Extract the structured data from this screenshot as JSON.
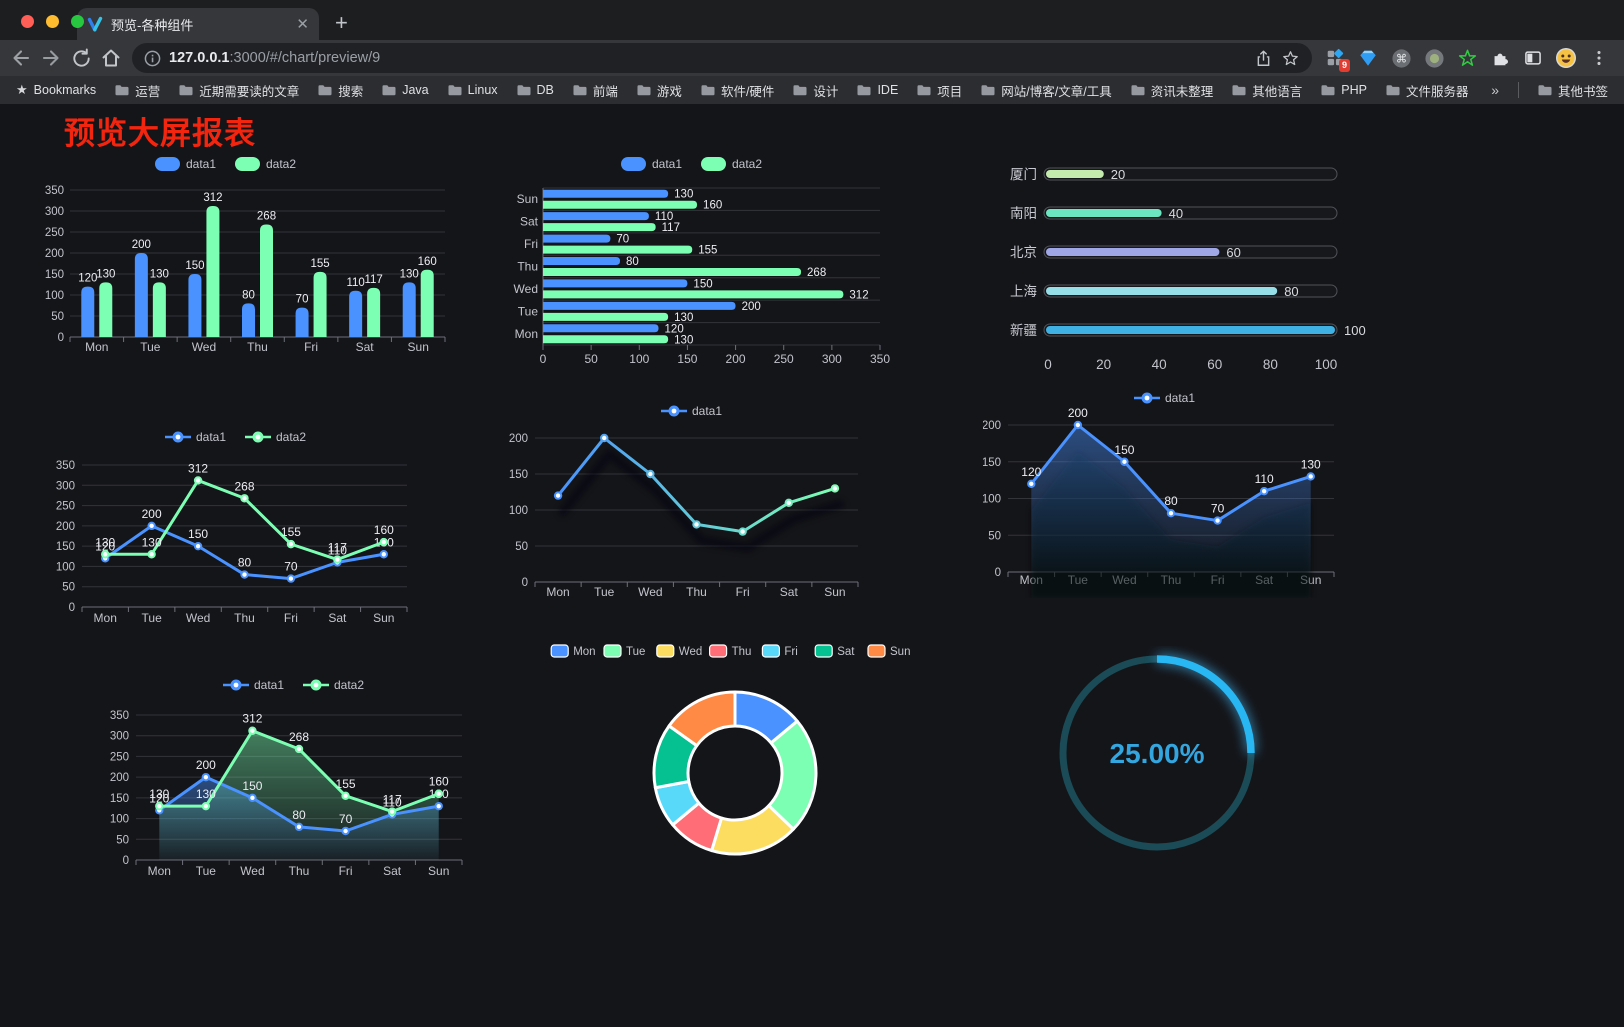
{
  "browser": {
    "tab_title": "预览-各种组件",
    "url_host": "127.0.0.1",
    "url_rest": ":3000/#/chart/preview/9",
    "extension_badge": "9",
    "bookmarks": [
      "Bookmarks",
      "运营",
      "近期需要读的文章",
      "搜索",
      "Java",
      "Linux",
      "DB",
      "前端",
      "游戏",
      "软件/硬件",
      "设计",
      "IDE",
      "项目",
      "网站/博客/文章/工具",
      "资讯未整理",
      "其他语言",
      "PHP",
      "文件服务器"
    ],
    "bookmarks_overflow": "»",
    "other_bookmarks": "其他书签"
  },
  "page": {
    "title": "预览大屏报表",
    "title_color": "#f3250f",
    "background": "#141519"
  },
  "chart_data": [
    {
      "id": "bar-grouped",
      "type": "bar",
      "categories": [
        "Mon",
        "Tue",
        "Wed",
        "Thu",
        "Fri",
        "Sat",
        "Sun"
      ],
      "series": [
        {
          "name": "data1",
          "color": "#4992ff",
          "values": [
            120,
            200,
            150,
            80,
            70,
            110,
            130
          ]
        },
        {
          "name": "data2",
          "color": "#7cffb2",
          "values": [
            130,
            130,
            312,
            268,
            155,
            117,
            160
          ]
        }
      ],
      "ymax": 350,
      "yticks": [
        0,
        50,
        100,
        150,
        200,
        250,
        300,
        350
      ],
      "show_labels": true,
      "legend_position": "top"
    },
    {
      "id": "bar-horizontal",
      "type": "bar-h",
      "categories_top_to_bottom": [
        "Sun",
        "Sat",
        "Fri",
        "Thu",
        "Wed",
        "Tue",
        "Mon"
      ],
      "series": [
        {
          "name": "data1",
          "color": "#4992ff",
          "values": [
            130,
            110,
            70,
            80,
            150,
            200,
            120
          ]
        },
        {
          "name": "data2",
          "color": "#7cffb2",
          "values": [
            160,
            117,
            155,
            268,
            312,
            130,
            130
          ]
        }
      ],
      "xmax": 350,
      "xticks": [
        0,
        50,
        100,
        150,
        200,
        250,
        300,
        350
      ],
      "show_labels": true,
      "legend_position": "top"
    },
    {
      "id": "progress",
      "type": "progress-bars",
      "items": [
        {
          "label": "厦门",
          "value": 20,
          "color": "#c4ebad"
        },
        {
          "label": "南阳",
          "value": 40,
          "color": "#6be6c1"
        },
        {
          "label": "北京",
          "value": 60,
          "color": "#a0a7e6"
        },
        {
          "label": "上海",
          "value": 80,
          "color": "#96dee8"
        },
        {
          "label": "新疆",
          "value": 100,
          "color": "#3fb1e3"
        }
      ],
      "xmax": 100,
      "xticks": [
        0,
        20,
        40,
        60,
        80,
        100
      ]
    },
    {
      "id": "line-basic",
      "type": "line",
      "categories": [
        "Mon",
        "Tue",
        "Wed",
        "Thu",
        "Fri",
        "Sat",
        "Sun"
      ],
      "series": [
        {
          "name": "data1",
          "color": "#4992ff",
          "values": [
            120,
            200,
            150,
            80,
            70,
            110,
            130
          ]
        },
        {
          "name": "data2",
          "color": "#7cffb2",
          "values": [
            130,
            130,
            312,
            268,
            155,
            117,
            160
          ]
        }
      ],
      "ymax": 350,
      "yticks": [
        0,
        50,
        100,
        150,
        200,
        250,
        300,
        350
      ],
      "show_labels": true,
      "legend_position": "top"
    },
    {
      "id": "line-gradient",
      "type": "line",
      "categories": [
        "Mon",
        "Tue",
        "Wed",
        "Thu",
        "Fri",
        "Sat",
        "Sun"
      ],
      "series": [
        {
          "name": "data1",
          "gradient": [
            "#4992ff",
            "#7cffb2"
          ],
          "values": [
            120,
            200,
            150,
            80,
            70,
            110,
            130
          ]
        }
      ],
      "ymax": 200,
      "yticks": [
        0,
        50,
        100,
        150,
        200
      ],
      "show_labels": false,
      "line_shadow": true,
      "legend_position": "top"
    },
    {
      "id": "area-single",
      "type": "line",
      "categories": [
        "Mon",
        "Tue",
        "Wed",
        "Thu",
        "Fri",
        "Sat",
        "Sun"
      ],
      "series": [
        {
          "name": "data1",
          "color": "#4992ff",
          "area": true,
          "values": [
            120,
            200,
            150,
            80,
            70,
            110,
            130
          ]
        }
      ],
      "ymax": 200,
      "yticks": [
        0,
        50,
        100,
        150,
        200
      ],
      "show_labels": true,
      "area_shadow": true,
      "legend_position": "top"
    },
    {
      "id": "area-double",
      "type": "line",
      "categories": [
        "Mon",
        "Tue",
        "Wed",
        "Thu",
        "Fri",
        "Sat",
        "Sun"
      ],
      "series": [
        {
          "name": "data1",
          "color": "#4992ff",
          "area": true,
          "values": [
            120,
            200,
            150,
            80,
            70,
            110,
            130
          ]
        },
        {
          "name": "data2",
          "color": "#7cffb2",
          "area": true,
          "values": [
            130,
            130,
            312,
            268,
            155,
            117,
            160
          ]
        }
      ],
      "ymax": 350,
      "yticks": [
        0,
        50,
        100,
        150,
        200,
        250,
        300,
        350
      ],
      "show_labels": true,
      "legend_position": "top"
    },
    {
      "id": "donut",
      "type": "pie",
      "items": [
        {
          "label": "Mon",
          "value": 120,
          "color": "#4992ff"
        },
        {
          "label": "Tue",
          "value": 200,
          "color": "#7cffb2"
        },
        {
          "label": "Wed",
          "value": 150,
          "color": "#fddd60"
        },
        {
          "label": "Thu",
          "value": 80,
          "color": "#ff6e76"
        },
        {
          "label": "Fri",
          "value": 70,
          "color": "#58d9f9"
        },
        {
          "label": "Sat",
          "value": 110,
          "color": "#05c091"
        },
        {
          "label": "Sun",
          "value": 130,
          "color": "#ff8a45"
        }
      ],
      "border_color": "#ffffff",
      "legend_position": "top"
    },
    {
      "id": "gauge",
      "type": "gauge",
      "value": 25,
      "label": "25.00%",
      "arc_color": "#28b7f2",
      "track_color": "#1a4b57",
      "text_color": "#33a6e0"
    }
  ]
}
